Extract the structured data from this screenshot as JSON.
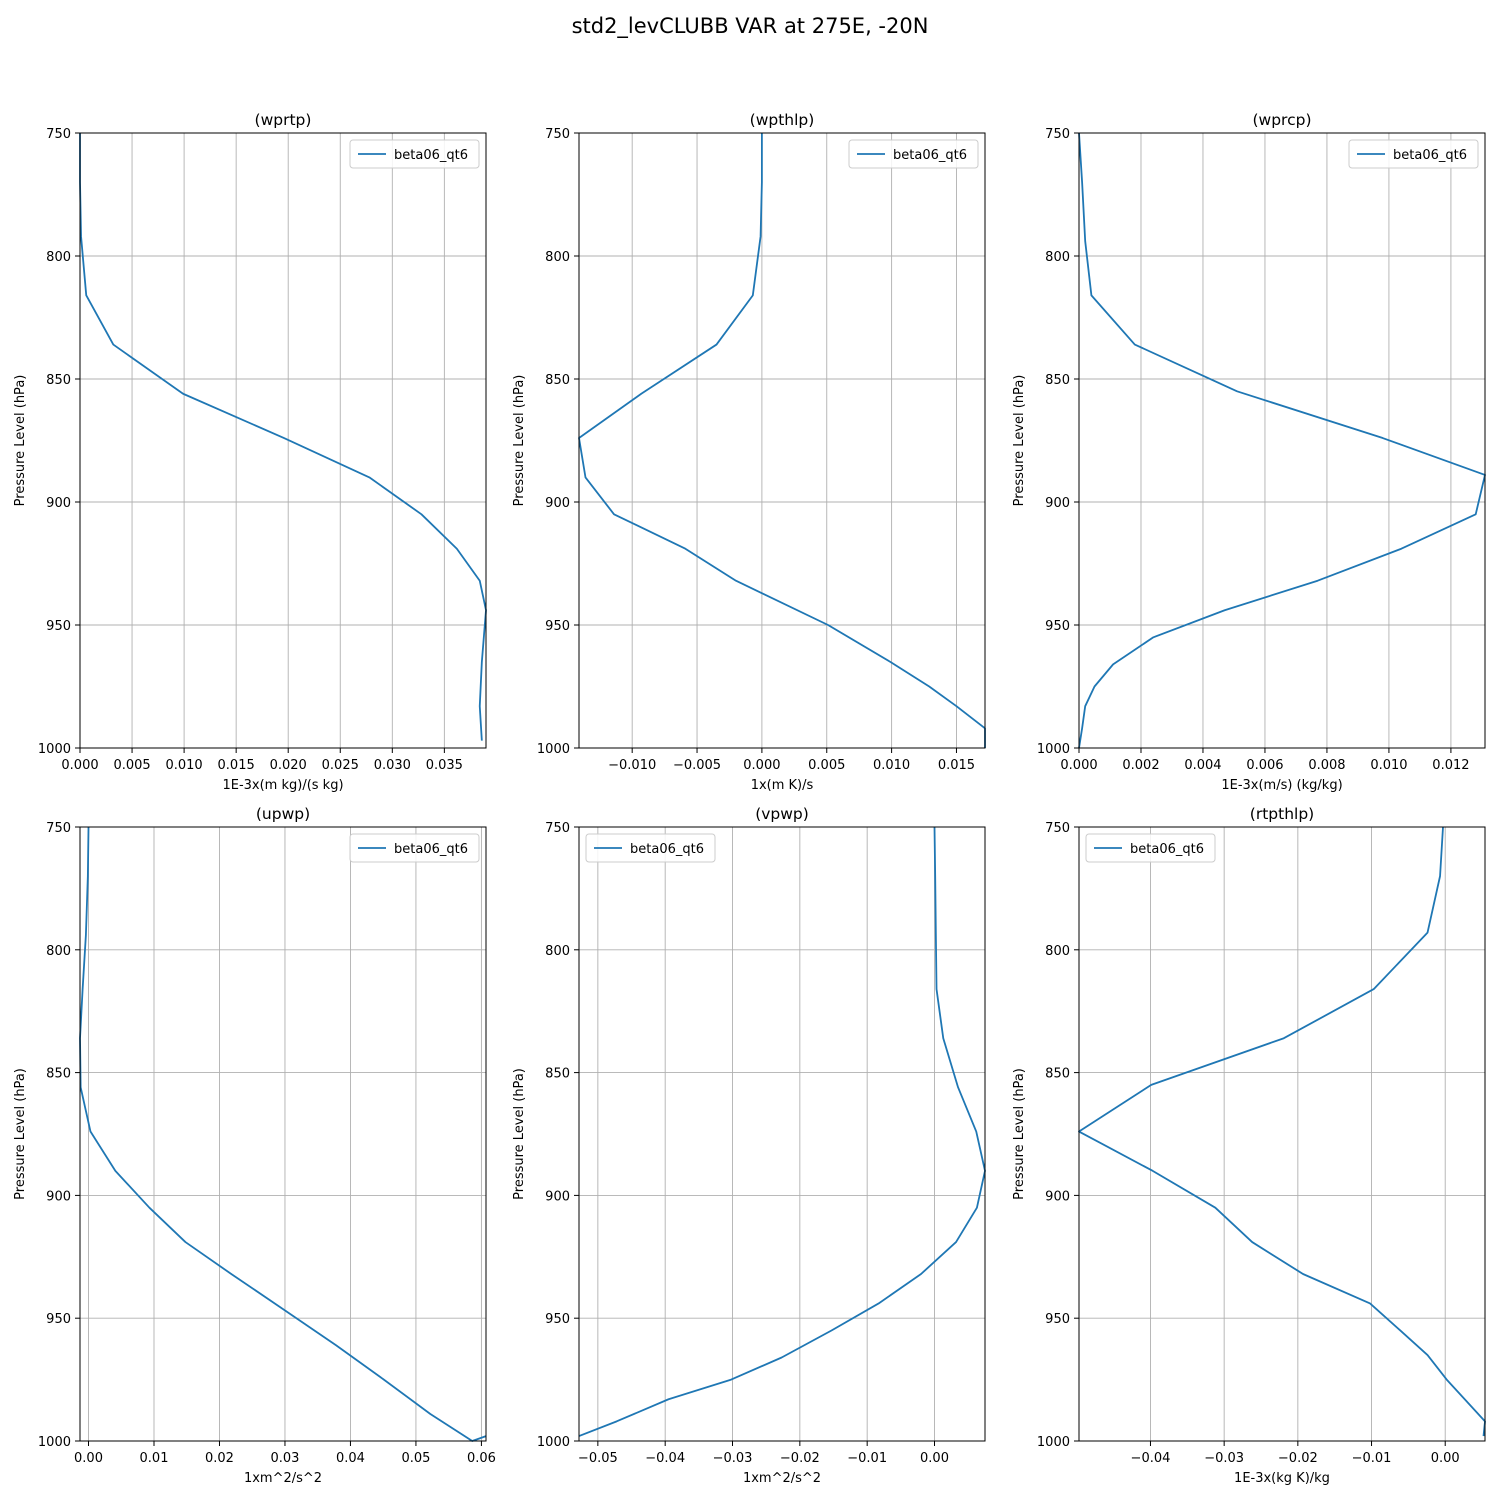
{
  "figure_title": "std2_levCLUBB VAR at 275E, -20N",
  "colors": {
    "line": "#1f77b4",
    "grid": "#b0b0b0",
    "axes": "#000000"
  },
  "chart_data": [
    {
      "type": "line",
      "title": "(wprtp)",
      "xlabel": "1E-3x(m kg)/(s kg)",
      "ylabel": "Pressure Level (hPa)",
      "xlim": [
        0,
        0.039
      ],
      "ylim": [
        1000,
        750
      ],
      "xticks": [
        0,
        0.005,
        0.01,
        0.015,
        0.02,
        0.025,
        0.03,
        0.035
      ],
      "xtick_labels": [
        "0.000",
        "0.005",
        "0.010",
        "0.015",
        "0.020",
        "0.025",
        "0.030",
        "0.035"
      ],
      "yticks": [
        750,
        800,
        850,
        900,
        950,
        1000
      ],
      "ytick_labels": [
        "750",
        "800",
        "850",
        "900",
        "950",
        "1000"
      ],
      "grid": true,
      "legend_position": "upper right",
      "series": [
        {
          "name": "beta06_qt6",
          "x": [
            0.0,
            0.0,
            0.0001,
            0.0006,
            0.0032,
            0.0099,
            0.0196,
            0.0278,
            0.0328,
            0.0362,
            0.0384,
            0.039,
            0.0386,
            0.0384,
            0.0386
          ],
          "y": [
            750,
            770,
            792,
            816,
            836,
            856,
            874,
            890,
            905,
            919,
            932,
            944,
            965,
            983,
            997
          ]
        }
      ]
    },
    {
      "type": "line",
      "title": "(wpthlp)",
      "xlabel": "1x(m K)/s",
      "ylabel": "Pressure Level (hPa)",
      "xlim": [
        -0.0141,
        0.0172
      ],
      "ylim": [
        1000,
        750
      ],
      "xticks": [
        -0.01,
        -0.005,
        0.0,
        0.005,
        0.01,
        0.015
      ],
      "xtick_labels": [
        "−0.010",
        "−0.005",
        "0.000",
        "0.005",
        "0.010",
        "0.015"
      ],
      "yticks": [
        750,
        800,
        850,
        900,
        950,
        1000
      ],
      "ytick_labels": [
        "750",
        "800",
        "850",
        "900",
        "950",
        "1000"
      ],
      "grid": true,
      "legend_position": "upper right",
      "series": [
        {
          "name": "beta06_qt6",
          "x": [
            0.0,
            0.0,
            -0.0001,
            -0.0007,
            -0.0035,
            -0.0093,
            -0.0141,
            -0.0136,
            -0.0114,
            -0.0059,
            -0.002,
            0.0051,
            0.0099,
            0.0129,
            0.015,
            0.0172,
            0.0172
          ],
          "y": [
            750,
            770,
            792,
            816,
            836,
            856,
            874,
            890,
            905,
            919,
            932,
            950,
            965,
            975,
            983,
            992,
            1000
          ]
        }
      ]
    },
    {
      "type": "line",
      "title": "(wprcp)",
      "xlabel": "1E-3x(m/s) (kg/kg)",
      "ylabel": "Pressure Level (hPa)",
      "xlim": [
        0,
        0.0131
      ],
      "ylim": [
        1000,
        750
      ],
      "xticks": [
        0,
        0.002,
        0.004,
        0.006,
        0.008,
        0.01,
        0.012
      ],
      "xtick_labels": [
        "0.000",
        "0.002",
        "0.004",
        "0.006",
        "0.008",
        "0.010",
        "0.012"
      ],
      "yticks": [
        750,
        800,
        850,
        900,
        950,
        1000
      ],
      "ytick_labels": [
        "750",
        "800",
        "850",
        "900",
        "950",
        "1000"
      ],
      "grid": true,
      "legend_position": "upper right",
      "series": [
        {
          "name": "beta06_qt6",
          "x": [
            0.0,
            0.0001,
            0.0002,
            0.0004,
            0.0018,
            0.0051,
            0.0098,
            0.0131,
            0.0128,
            0.0104,
            0.0077,
            0.0047,
            0.0024,
            0.0011,
            0.0005,
            0.0002,
            0.0001,
            0.0
          ],
          "y": [
            750,
            770,
            794,
            816,
            836,
            855,
            874,
            889,
            905,
            919,
            932,
            944,
            955,
            966,
            975,
            983,
            992,
            1000
          ]
        }
      ]
    },
    {
      "type": "line",
      "title": "(upwp)",
      "xlabel": "1xm^2/s^2",
      "ylabel": "Pressure Level (hPa)",
      "xlim": [
        -0.0013,
        0.0607
      ],
      "ylim": [
        1000,
        750
      ],
      "xticks": [
        0.0,
        0.01,
        0.02,
        0.03,
        0.04,
        0.05,
        0.06
      ],
      "xtick_labels": [
        "0.00",
        "0.01",
        "0.02",
        "0.03",
        "0.04",
        "0.05",
        "0.06"
      ],
      "yticks": [
        750,
        800,
        850,
        900,
        950,
        1000
      ],
      "ytick_labels": [
        "750",
        "800",
        "850",
        "900",
        "950",
        "1000"
      ],
      "grid": true,
      "legend_position": "upper right",
      "series": [
        {
          "name": "beta06_qt6",
          "x": [
            0.0,
            -0.0001,
            -0.0004,
            -0.0009,
            -0.0013,
            -0.0012,
            0.0003,
            0.0041,
            0.0093,
            0.0148,
            0.0218,
            0.0301,
            0.0378,
            0.0451,
            0.0522,
            0.0586,
            0.0607
          ],
          "y": [
            750,
            770,
            794,
            816,
            836,
            856,
            874,
            890,
            905,
            919,
            932,
            947,
            961,
            975,
            989,
            1000,
            998
          ]
        }
      ]
    },
    {
      "type": "line",
      "title": "(vpwp)",
      "xlabel": "1xm^2/s^2",
      "ylabel": "Pressure Level (hPa)",
      "xlim": [
        -0.0528,
        0.0075
      ],
      "ylim": [
        1000,
        750
      ],
      "xticks": [
        -0.05,
        -0.04,
        -0.03,
        -0.02,
        -0.01,
        0.0
      ],
      "xtick_labels": [
        "−0.05",
        "−0.04",
        "−0.03",
        "−0.02",
        "−0.01",
        "0.00"
      ],
      "yticks": [
        750,
        800,
        850,
        900,
        950,
        1000
      ],
      "ytick_labels": [
        "750",
        "800",
        "850",
        "900",
        "950",
        "1000"
      ],
      "grid": true,
      "legend_position": "upper left",
      "series": [
        {
          "name": "beta06_qt6",
          "x": [
            0.0,
            0.0001,
            0.0002,
            0.0003,
            0.0013,
            0.0035,
            0.0062,
            0.0075,
            0.0063,
            0.0032,
            -0.002,
            -0.0083,
            -0.0153,
            -0.0227,
            -0.0302,
            -0.0395,
            -0.0472,
            -0.0528
          ],
          "y": [
            750,
            770,
            794,
            816,
            836,
            856,
            874,
            890,
            905,
            919,
            932,
            944,
            955,
            966,
            975,
            983,
            992,
            998
          ]
        }
      ]
    },
    {
      "type": "line",
      "title": "(rtpthlp)",
      "xlabel": "1E-3x(kg K)/kg",
      "ylabel": "Pressure Level (hPa)",
      "xlim": [
        -0.0497,
        0.0054
      ],
      "ylim": [
        1000,
        750
      ],
      "xticks": [
        -0.04,
        -0.03,
        -0.02,
        -0.01,
        0.0
      ],
      "xtick_labels": [
        "−0.04",
        "−0.03",
        "−0.02",
        "−0.01",
        "0.00"
      ],
      "yticks": [
        750,
        800,
        850,
        900,
        950,
        1000
      ],
      "ytick_labels": [
        "750",
        "800",
        "850",
        "900",
        "950",
        "1000"
      ],
      "grid": true,
      "legend_position": "upper left",
      "series": [
        {
          "name": "beta06_qt6",
          "x": [
            -0.0003,
            -0.0007,
            -0.0024,
            -0.0097,
            -0.0219,
            -0.0399,
            -0.0497,
            -0.0397,
            -0.0312,
            -0.0262,
            -0.0193,
            -0.0102,
            -0.0061,
            -0.0024,
            0.0002,
            0.0054,
            0.0052
          ],
          "y": [
            750,
            770,
            793,
            816,
            836,
            855,
            874,
            890,
            905,
            919,
            932,
            944,
            955,
            965,
            975,
            992,
            998
          ]
        }
      ]
    }
  ]
}
